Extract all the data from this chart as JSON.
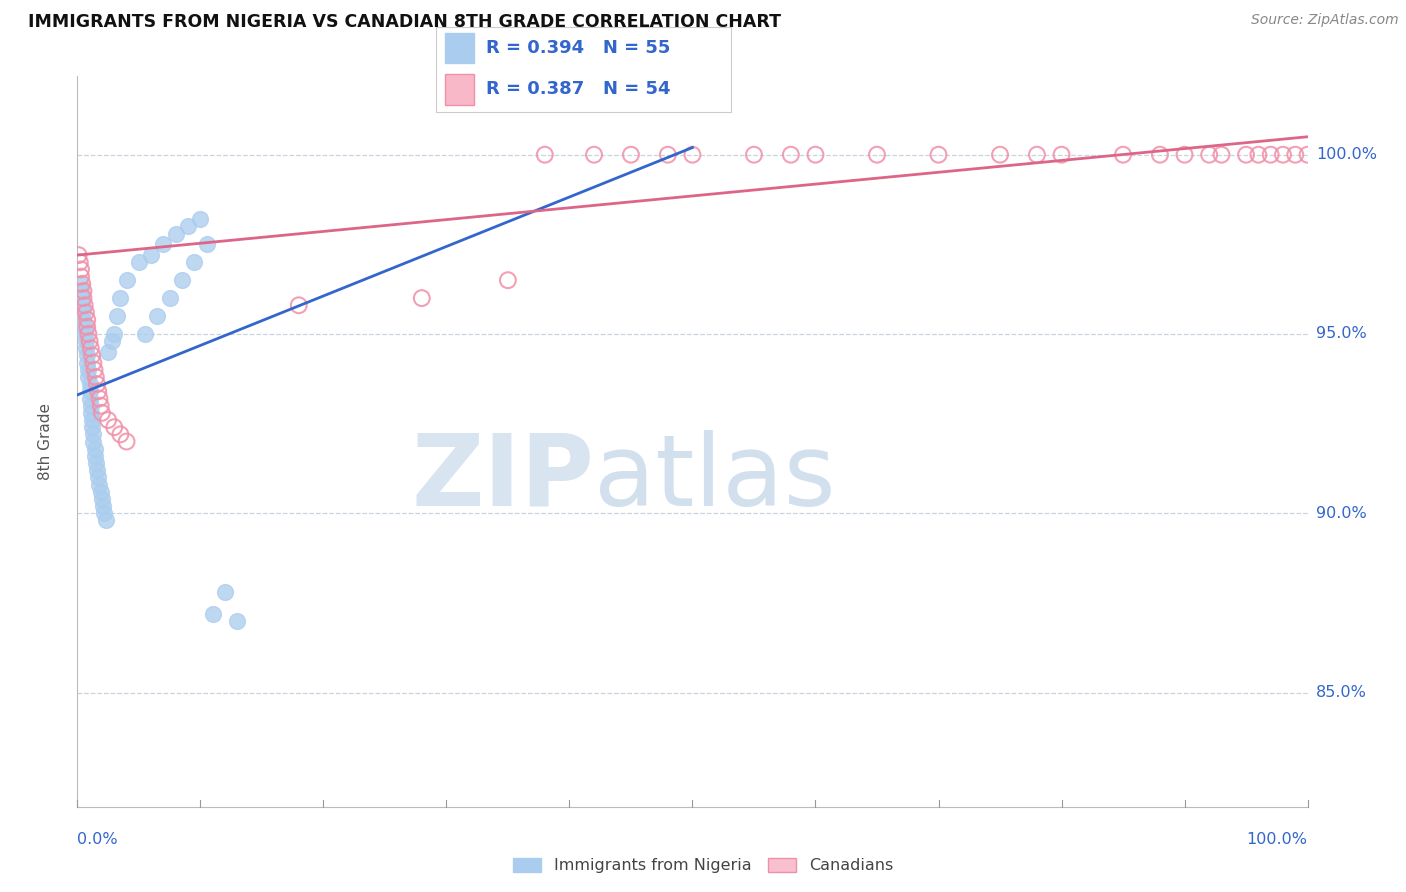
{
  "title": "IMMIGRANTS FROM NIGERIA VS CANADIAN 8TH GRADE CORRELATION CHART",
  "source": "Source: ZipAtlas.com",
  "ylabel": "8th Grade",
  "legend_label_blue": "Immigrants from Nigeria",
  "legend_label_pink": "Canadians",
  "R_blue": 0.394,
  "N_blue": 55,
  "R_pink": 0.387,
  "N_pink": 54,
  "blue_fill_color": "#aaccee",
  "blue_edge_color": "#aaccee",
  "pink_fill_color": "none",
  "pink_edge_color": "#f090a8",
  "blue_line_color": "#3366cc",
  "pink_line_color": "#dd6688",
  "legend_text_color": "#3366cc",
  "axis_label_color": "#3366cc",
  "background_color": "#ffffff",
  "grid_color": "#c8d4e0",
  "watermark_color": "#dde8f5",
  "source_color": "#888888",
  "title_color": "#111111",
  "xlim": [
    0.0,
    1.0
  ],
  "ylim": [
    0.818,
    1.022
  ],
  "ytick_vals": [
    0.85,
    0.9,
    0.95,
    1.0
  ],
  "ytick_labels": [
    "85.0%",
    "90.0%",
    "95.0%",
    "100.0%"
  ],
  "blue_x": [
    0.002,
    0.003,
    0.004,
    0.004,
    0.005,
    0.005,
    0.006,
    0.006,
    0.007,
    0.007,
    0.008,
    0.008,
    0.009,
    0.009,
    0.01,
    0.01,
    0.01,
    0.011,
    0.011,
    0.012,
    0.012,
    0.013,
    0.013,
    0.014,
    0.014,
    0.015,
    0.016,
    0.017,
    0.018,
    0.019,
    0.02,
    0.021,
    0.022,
    0.023,
    0.025,
    0.028,
    0.03,
    0.032,
    0.035,
    0.04,
    0.05,
    0.06,
    0.07,
    0.08,
    0.09,
    0.1,
    0.11,
    0.12,
    0.13,
    0.055,
    0.065,
    0.075,
    0.085,
    0.095,
    0.105
  ],
  "blue_y": [
    0.964,
    0.962,
    0.96,
    0.958,
    0.956,
    0.954,
    0.952,
    0.95,
    0.948,
    0.946,
    0.944,
    0.942,
    0.94,
    0.938,
    0.936,
    0.934,
    0.932,
    0.93,
    0.928,
    0.926,
    0.924,
    0.922,
    0.92,
    0.918,
    0.916,
    0.914,
    0.912,
    0.91,
    0.908,
    0.906,
    0.904,
    0.902,
    0.9,
    0.898,
    0.945,
    0.948,
    0.95,
    0.955,
    0.96,
    0.965,
    0.97,
    0.972,
    0.975,
    0.978,
    0.98,
    0.982,
    0.872,
    0.878,
    0.87,
    0.95,
    0.955,
    0.96,
    0.965,
    0.97,
    0.975
  ],
  "pink_x": [
    0.001,
    0.002,
    0.003,
    0.003,
    0.004,
    0.005,
    0.005,
    0.006,
    0.007,
    0.008,
    0.008,
    0.009,
    0.01,
    0.011,
    0.012,
    0.013,
    0.014,
    0.015,
    0.016,
    0.017,
    0.018,
    0.019,
    0.02,
    0.025,
    0.03,
    0.035,
    0.04,
    0.18,
    0.28,
    0.35,
    0.42,
    0.5,
    0.6,
    0.7,
    0.75,
    0.8,
    0.85,
    0.9,
    0.92,
    0.95,
    0.97,
    0.99,
    0.55,
    0.65,
    0.45,
    0.38,
    0.48,
    0.58,
    0.78,
    0.88,
    0.93,
    0.96,
    0.98,
    1.0
  ],
  "pink_y": [
    0.972,
    0.97,
    0.968,
    0.966,
    0.964,
    0.962,
    0.96,
    0.958,
    0.956,
    0.954,
    0.952,
    0.95,
    0.948,
    0.946,
    0.944,
    0.942,
    0.94,
    0.938,
    0.936,
    0.934,
    0.932,
    0.93,
    0.928,
    0.926,
    0.924,
    0.922,
    0.92,
    0.958,
    0.96,
    0.965,
    1.0,
    1.0,
    1.0,
    1.0,
    1.0,
    1.0,
    1.0,
    1.0,
    1.0,
    1.0,
    1.0,
    1.0,
    1.0,
    1.0,
    1.0,
    1.0,
    1.0,
    1.0,
    1.0,
    1.0,
    1.0,
    1.0,
    1.0,
    1.0
  ],
  "blue_line_x": [
    0.0,
    0.5
  ],
  "blue_line_y": [
    0.933,
    1.002
  ],
  "pink_line_x": [
    0.0,
    1.0
  ],
  "pink_line_y": [
    0.972,
    1.005
  ]
}
